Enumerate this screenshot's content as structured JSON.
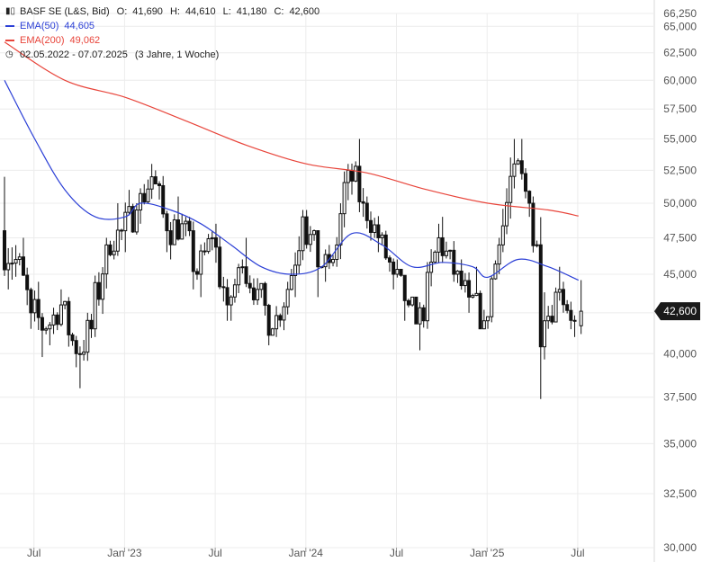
{
  "legend": {
    "instrument": "BASF SE (L&S, Bid)",
    "o_label": "O:",
    "o": "41,690",
    "h_label": "H:",
    "h": "44,610",
    "l_label": "L:",
    "l": "41,180",
    "c_label": "C:",
    "c": "42,600",
    "ema50_label": "EMA(50)",
    "ema50_value": "44,605",
    "ema200_label": "EMA(200)",
    "ema200_value": "49,062",
    "range": "02.05.2022 - 07.07.2025",
    "period": "(3 Jahre, 1 Woche)"
  },
  "colors": {
    "candle": "#111111",
    "ema50": "#2b3fd6",
    "ema200": "#e8443a",
    "grid": "#ececec",
    "price_badge": "#1a1a1a"
  },
  "chart_data": {
    "type": "candlestick",
    "y_scale": "log",
    "ylim": [
      30,
      66.25
    ],
    "y_ticks": [
      "30,000",
      "32,500",
      "35,000",
      "37,500",
      "40,000",
      "42,500",
      "45,000",
      "47,500",
      "50,000",
      "52,500",
      "55,000",
      "57,500",
      "60,000",
      "62,500",
      "65,000",
      "66,250"
    ],
    "x_ticks": [
      "Jul",
      "Jan '23",
      "Jul",
      "Jan '24",
      "Jul",
      "Jan '25",
      "Jul"
    ],
    "last_price": "42,600",
    "ohlc_anchors": [
      [
        "2022-05",
        48.0,
        52.0,
        44.0,
        46.0
      ],
      [
        "2022-06",
        46.0,
        47.5,
        41.5,
        42.5
      ],
      [
        "2022-07",
        42.5,
        44.5,
        39.8,
        41.5
      ],
      [
        "2022-08",
        41.5,
        44.0,
        40.5,
        43.0
      ],
      [
        "2022-09",
        43.0,
        43.5,
        39.2,
        40.0
      ],
      [
        "2022-10",
        40.0,
        42.5,
        38.0,
        41.5
      ],
      [
        "2022-11",
        41.5,
        47.5,
        41.0,
        47.0
      ],
      [
        "2022-12",
        47.0,
        50.0,
        46.0,
        48.0
      ],
      [
        "2023-01",
        48.0,
        51.0,
        46.5,
        49.5
      ],
      [
        "2023-02",
        49.5,
        53.0,
        48.5,
        52.0
      ],
      [
        "2023-03",
        52.0,
        52.5,
        46.5,
        48.0
      ],
      [
        "2023-04",
        48.0,
        50.5,
        46.0,
        48.5
      ],
      [
        "2023-05",
        48.5,
        49.0,
        44.0,
        45.0
      ],
      [
        "2023-06",
        45.0,
        48.0,
        43.5,
        47.5
      ],
      [
        "2023-07",
        47.5,
        48.5,
        42.0,
        43.0
      ],
      [
        "2023-08",
        43.0,
        46.0,
        42.0,
        45.5
      ],
      [
        "2023-09",
        45.5,
        47.5,
        43.0,
        44.0
      ],
      [
        "2023-10",
        44.0,
        44.5,
        40.5,
        41.5
      ],
      [
        "2023-11",
        41.5,
        44.5,
        41.0,
        44.0
      ],
      [
        "2023-12",
        44.0,
        49.5,
        43.5,
        49.0
      ],
      [
        "2024-01",
        49.0,
        49.5,
        43.5,
        45.5
      ],
      [
        "2024-02",
        45.5,
        47.0,
        44.5,
        46.0
      ],
      [
        "2024-03",
        46.0,
        53.0,
        45.5,
        52.5
      ],
      [
        "2024-04",
        52.5,
        55.0,
        49.0,
        50.0
      ],
      [
        "2024-05",
        50.0,
        50.5,
        46.5,
        47.5
      ],
      [
        "2024-06",
        47.5,
        48.0,
        44.0,
        45.0
      ],
      [
        "2024-07",
        45.0,
        46.0,
        42.0,
        43.0
      ],
      [
        "2024-08",
        43.0,
        43.5,
        40.2,
        42.0
      ],
      [
        "2024-09",
        42.0,
        48.5,
        41.5,
        47.5
      ],
      [
        "2024-10",
        47.5,
        49.0,
        44.5,
        45.0
      ],
      [
        "2024-11",
        45.0,
        46.0,
        42.5,
        43.5
      ],
      [
        "2024-12",
        43.5,
        45.5,
        41.5,
        42.0
      ],
      [
        "2025-01",
        42.0,
        47.5,
        41.5,
        47.0
      ],
      [
        "2025-02",
        47.0,
        55.0,
        46.5,
        53.0
      ],
      [
        "2025-03",
        53.0,
        55.0,
        49.0,
        50.0
      ],
      [
        "2025-04",
        50.0,
        50.5,
        37.4,
        42.0
      ],
      [
        "2025-05",
        42.0,
        45.5,
        41.5,
        44.0
      ],
      [
        "2025-06",
        44.0,
        44.5,
        41.0,
        42.0
      ],
      [
        "2025-07",
        41.69,
        44.61,
        41.18,
        42.6
      ]
    ],
    "ema50": [
      [
        "2022-05",
        60.0
      ],
      [
        "2022-07",
        55.0
      ],
      [
        "2022-09",
        51.0
      ],
      [
        "2022-11",
        49.0
      ],
      [
        "2023-01",
        49.0
      ],
      [
        "2023-02",
        50.0
      ],
      [
        "2023-04",
        49.5
      ],
      [
        "2023-06",
        48.5
      ],
      [
        "2023-08",
        47.0
      ],
      [
        "2023-10",
        45.5
      ],
      [
        "2023-12",
        45.0
      ],
      [
        "2024-02",
        45.5
      ],
      [
        "2024-04",
        47.8
      ],
      [
        "2024-06",
        47.0
      ],
      [
        "2024-08",
        45.5
      ],
      [
        "2024-10",
        45.8
      ],
      [
        "2024-12",
        45.5
      ],
      [
        "2025-01",
        44.8
      ],
      [
        "2025-03",
        46.0
      ],
      [
        "2025-05",
        45.5
      ],
      [
        "2025-07",
        44.605
      ]
    ],
    "ema200": [
      [
        "2022-05",
        63.5
      ],
      [
        "2022-09",
        60.0
      ],
      [
        "2023-01",
        58.5
      ],
      [
        "2023-05",
        56.5
      ],
      [
        "2023-09",
        54.5
      ],
      [
        "2024-01",
        53.0
      ],
      [
        "2024-05",
        52.3
      ],
      [
        "2024-09",
        51.0
      ],
      [
        "2025-01",
        50.0
      ],
      [
        "2025-05",
        49.5
      ],
      [
        "2025-07",
        49.062
      ]
    ]
  }
}
